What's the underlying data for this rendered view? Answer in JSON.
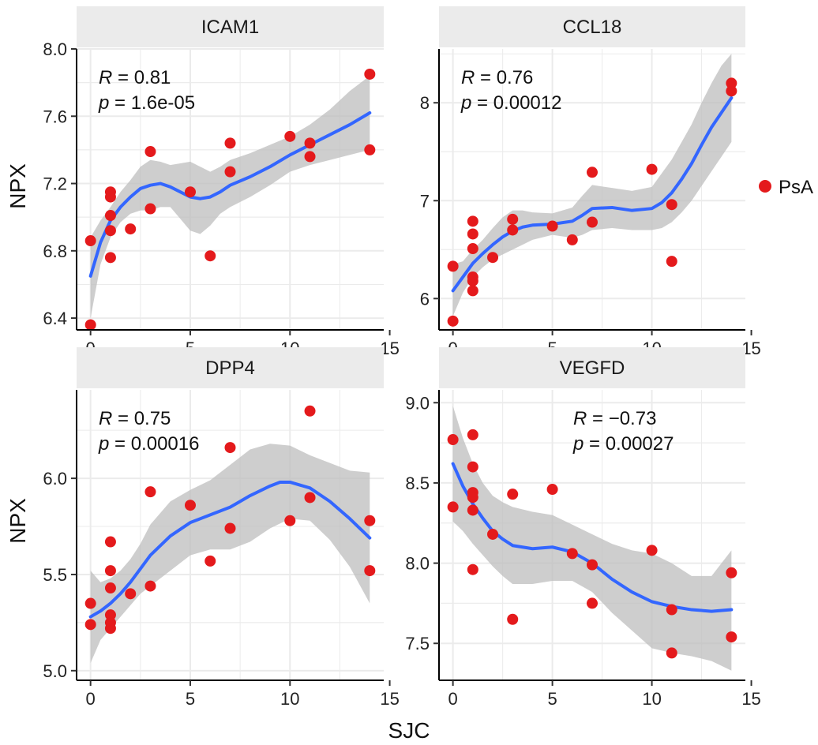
{
  "x_axis_title": "SJC",
  "y_axis_title": "NPX",
  "legend": {
    "label": "PsA",
    "color": "#e41a1c"
  },
  "colors": {
    "point": "#e41a1c",
    "smooth": "#3366ff",
    "ribbon": "#bdbdbd",
    "grid": "#ebebeb",
    "strip": "#ebebeb"
  },
  "chart_data": [
    {
      "type": "scatter",
      "title": "ICAM1",
      "xlim": [
        -0.7,
        14.7
      ],
      "ylim": [
        6.33,
        8.0
      ],
      "x_ticks": [
        0,
        5,
        10,
        15
      ],
      "y_ticks": [
        6.4,
        6.8,
        7.2,
        7.6,
        8.0
      ],
      "y_tick_labels": [
        "6.4",
        "6.8",
        "7.2",
        "7.6",
        "8.0"
      ],
      "stat": {
        "r_label": "R",
        "r_value": "0.81",
        "p_label": "p",
        "p_value": "1.6e-05",
        "corner": "top-left"
      },
      "points": [
        [
          0,
          6.86
        ],
        [
          0,
          6.36
        ],
        [
          1,
          7.15
        ],
        [
          1,
          7.12
        ],
        [
          1,
          7.01
        ],
        [
          1,
          6.92
        ],
        [
          1,
          6.76
        ],
        [
          2,
          6.93
        ],
        [
          3,
          7.39
        ],
        [
          3,
          7.05
        ],
        [
          5,
          7.15
        ],
        [
          6,
          6.77
        ],
        [
          7,
          7.44
        ],
        [
          7,
          7.27
        ],
        [
          10,
          7.48
        ],
        [
          11,
          7.44
        ],
        [
          11,
          7.36
        ],
        [
          14,
          7.85
        ],
        [
          14,
          7.4
        ]
      ],
      "smooth": [
        [
          0,
          6.65
        ],
        [
          0.5,
          6.85
        ],
        [
          1,
          6.98
        ],
        [
          1.5,
          7.06
        ],
        [
          2,
          7.12
        ],
        [
          2.5,
          7.17
        ],
        [
          3,
          7.19
        ],
        [
          3.5,
          7.2
        ],
        [
          4,
          7.18
        ],
        [
          4.5,
          7.15
        ],
        [
          5,
          7.12
        ],
        [
          5.5,
          7.11
        ],
        [
          6,
          7.12
        ],
        [
          6.5,
          7.15
        ],
        [
          7,
          7.19
        ],
        [
          8,
          7.24
        ],
        [
          9,
          7.3
        ],
        [
          10,
          7.37
        ],
        [
          11,
          7.43
        ],
        [
          12,
          7.49
        ],
        [
          13,
          7.55
        ],
        [
          14,
          7.62
        ]
      ],
      "band_upper": [
        [
          0,
          6.88
        ],
        [
          0.5,
          6.98
        ],
        [
          1,
          7.06
        ],
        [
          1.5,
          7.15
        ],
        [
          2,
          7.22
        ],
        [
          2.5,
          7.3
        ],
        [
          3,
          7.34
        ],
        [
          3.5,
          7.33
        ],
        [
          4,
          7.31
        ],
        [
          4.5,
          7.32
        ],
        [
          5,
          7.33
        ],
        [
          5.5,
          7.3
        ],
        [
          6,
          7.27
        ],
        [
          6.5,
          7.3
        ],
        [
          7,
          7.34
        ],
        [
          8,
          7.38
        ],
        [
          9,
          7.43
        ],
        [
          10,
          7.48
        ],
        [
          11,
          7.55
        ],
        [
          12,
          7.64
        ],
        [
          13,
          7.75
        ],
        [
          14,
          7.84
        ]
      ],
      "band_lower": [
        [
          0,
          6.4
        ],
        [
          0.5,
          6.72
        ],
        [
          1,
          6.88
        ],
        [
          1.5,
          6.97
        ],
        [
          2,
          7.02
        ],
        [
          2.5,
          7.04
        ],
        [
          3,
          7.04
        ],
        [
          3.5,
          7.06
        ],
        [
          4,
          7.06
        ],
        [
          4.5,
          6.99
        ],
        [
          5,
          6.92
        ],
        [
          5.5,
          6.9
        ],
        [
          6,
          6.95
        ],
        [
          6.5,
          7.02
        ],
        [
          7,
          7.06
        ],
        [
          8,
          7.12
        ],
        [
          9,
          7.19
        ],
        [
          10,
          7.27
        ],
        [
          11,
          7.31
        ],
        [
          12,
          7.34
        ],
        [
          13,
          7.37
        ],
        [
          14,
          7.4
        ]
      ]
    },
    {
      "type": "scatter",
      "title": "CCL18",
      "xlim": [
        -0.7,
        14.7
      ],
      "ylim": [
        5.68,
        8.55
      ],
      "x_ticks": [
        0,
        5,
        10,
        15
      ],
      "y_ticks": [
        6,
        7,
        8
      ],
      "y_tick_labels": [
        "6",
        "7",
        "8"
      ],
      "stat": {
        "r_label": "R",
        "r_value": "0.76",
        "p_label": "p",
        "p_value": "0.00012",
        "corner": "top-left"
      },
      "points": [
        [
          0,
          6.33
        ],
        [
          0,
          5.77
        ],
        [
          1,
          6.79
        ],
        [
          1,
          6.66
        ],
        [
          1,
          6.51
        ],
        [
          1,
          6.22
        ],
        [
          1,
          6.18
        ],
        [
          1,
          6.08
        ],
        [
          2,
          6.42
        ],
        [
          3,
          6.81
        ],
        [
          3,
          6.7
        ],
        [
          5,
          6.74
        ],
        [
          6,
          6.6
        ],
        [
          7,
          7.29
        ],
        [
          7,
          6.78
        ],
        [
          10,
          7.32
        ],
        [
          11,
          6.96
        ],
        [
          11,
          6.38
        ],
        [
          14,
          8.2
        ],
        [
          14,
          8.12
        ]
      ],
      "smooth": [
        [
          0,
          6.08
        ],
        [
          0.5,
          6.22
        ],
        [
          1,
          6.36
        ],
        [
          1.5,
          6.46
        ],
        [
          2,
          6.55
        ],
        [
          2.5,
          6.63
        ],
        [
          3,
          6.69
        ],
        [
          3.5,
          6.73
        ],
        [
          4,
          6.75
        ],
        [
          5,
          6.76
        ],
        [
          6,
          6.79
        ],
        [
          6.5,
          6.85
        ],
        [
          7,
          6.92
        ],
        [
          8,
          6.93
        ],
        [
          9,
          6.9
        ],
        [
          10,
          6.92
        ],
        [
          10.5,
          6.98
        ],
        [
          11,
          7.08
        ],
        [
          11.5,
          7.22
        ],
        [
          12,
          7.38
        ],
        [
          12.5,
          7.57
        ],
        [
          13,
          7.75
        ],
        [
          13.5,
          7.9
        ],
        [
          14,
          8.05
        ]
      ],
      "band_upper": [
        [
          0,
          6.35
        ],
        [
          0.5,
          6.38
        ],
        [
          1,
          6.5
        ],
        [
          1.5,
          6.6
        ],
        [
          2,
          6.72
        ],
        [
          2.5,
          6.83
        ],
        [
          3,
          6.9
        ],
        [
          3.5,
          6.9
        ],
        [
          4,
          6.88
        ],
        [
          5,
          6.87
        ],
        [
          6,
          6.93
        ],
        [
          6.5,
          7.05
        ],
        [
          7,
          7.16
        ],
        [
          8,
          7.13
        ],
        [
          9,
          7.1
        ],
        [
          10,
          7.14
        ],
        [
          10.5,
          7.28
        ],
        [
          11,
          7.42
        ],
        [
          11.5,
          7.6
        ],
        [
          12,
          7.78
        ],
        [
          12.5,
          8.0
        ],
        [
          13,
          8.2
        ],
        [
          13.5,
          8.38
        ],
        [
          14,
          8.5
        ]
      ],
      "band_lower": [
        [
          0,
          5.82
        ],
        [
          0.5,
          6.06
        ],
        [
          1,
          6.22
        ],
        [
          1.5,
          6.32
        ],
        [
          2,
          6.4
        ],
        [
          2.5,
          6.45
        ],
        [
          3,
          6.5
        ],
        [
          3.5,
          6.55
        ],
        [
          4,
          6.6
        ],
        [
          5,
          6.65
        ],
        [
          6,
          6.62
        ],
        [
          6.5,
          6.65
        ],
        [
          7,
          6.7
        ],
        [
          8,
          6.72
        ],
        [
          9,
          6.7
        ],
        [
          10,
          6.7
        ],
        [
          10.5,
          6.72
        ],
        [
          11,
          6.78
        ],
        [
          11.5,
          6.88
        ],
        [
          12,
          7.0
        ],
        [
          12.5,
          7.15
        ],
        [
          13,
          7.3
        ],
        [
          13.5,
          7.45
        ],
        [
          14,
          7.6
        ]
      ]
    },
    {
      "type": "scatter",
      "title": "DPP4",
      "xlim": [
        -0.7,
        14.7
      ],
      "ylim": [
        4.95,
        6.46
      ],
      "x_ticks": [
        0,
        5,
        10,
        15
      ],
      "y_ticks": [
        5.0,
        5.5,
        6.0
      ],
      "y_tick_labels": [
        "5.0",
        "5.5",
        "6.0"
      ],
      "stat": {
        "r_label": "R",
        "r_value": "0.75",
        "p_label": "p",
        "p_value": "0.00016",
        "corner": "top-left"
      },
      "points": [
        [
          0,
          5.35
        ],
        [
          0,
          5.24
        ],
        [
          1,
          5.67
        ],
        [
          1,
          5.52
        ],
        [
          1,
          5.43
        ],
        [
          1,
          5.29
        ],
        [
          1,
          5.25
        ],
        [
          1,
          5.22
        ],
        [
          2,
          5.4
        ],
        [
          3,
          5.93
        ],
        [
          3,
          5.44
        ],
        [
          5,
          5.86
        ],
        [
          6,
          5.57
        ],
        [
          7,
          6.16
        ],
        [
          7,
          5.74
        ],
        [
          10,
          5.78
        ],
        [
          11,
          6.35
        ],
        [
          11,
          5.9
        ],
        [
          14,
          5.78
        ],
        [
          14,
          5.52
        ]
      ],
      "smooth": [
        [
          0,
          5.28
        ],
        [
          0.5,
          5.31
        ],
        [
          1,
          5.35
        ],
        [
          1.5,
          5.4
        ],
        [
          2,
          5.46
        ],
        [
          2.5,
          5.53
        ],
        [
          3,
          5.6
        ],
        [
          4,
          5.7
        ],
        [
          5,
          5.77
        ],
        [
          6,
          5.81
        ],
        [
          7,
          5.85
        ],
        [
          8,
          5.91
        ],
        [
          9,
          5.96
        ],
        [
          9.5,
          5.98
        ],
        [
          10,
          5.98
        ],
        [
          11,
          5.95
        ],
        [
          12,
          5.88
        ],
        [
          13,
          5.79
        ],
        [
          14,
          5.69
        ]
      ],
      "band_upper": [
        [
          0,
          5.52
        ],
        [
          0.5,
          5.46
        ],
        [
          1,
          5.48
        ],
        [
          1.5,
          5.52
        ],
        [
          2,
          5.58
        ],
        [
          2.5,
          5.66
        ],
        [
          3,
          5.76
        ],
        [
          4,
          5.88
        ],
        [
          5,
          5.94
        ],
        [
          6,
          5.99
        ],
        [
          7,
          6.07
        ],
        [
          8,
          6.15
        ],
        [
          9,
          6.18
        ],
        [
          10,
          6.17
        ],
        [
          11,
          6.12
        ],
        [
          12,
          6.08
        ],
        [
          13,
          6.04
        ],
        [
          14,
          6.03
        ]
      ],
      "band_lower": [
        [
          0,
          5.04
        ],
        [
          0.5,
          5.16
        ],
        [
          1,
          5.22
        ],
        [
          1.5,
          5.28
        ],
        [
          2,
          5.34
        ],
        [
          2.5,
          5.4
        ],
        [
          3,
          5.44
        ],
        [
          4,
          5.52
        ],
        [
          5,
          5.6
        ],
        [
          6,
          5.63
        ],
        [
          7,
          5.63
        ],
        [
          8,
          5.67
        ],
        [
          9,
          5.74
        ],
        [
          10,
          5.79
        ],
        [
          11,
          5.78
        ],
        [
          12,
          5.68
        ],
        [
          13,
          5.54
        ],
        [
          14,
          5.35
        ]
      ]
    },
    {
      "type": "scatter",
      "title": "VEGFD",
      "xlim": [
        -0.7,
        14.7
      ],
      "ylim": [
        7.27,
        9.08
      ],
      "x_ticks": [
        0,
        5,
        10,
        15
      ],
      "y_ticks": [
        7.5,
        8.0,
        8.5,
        9.0
      ],
      "y_tick_labels": [
        "7.5",
        "8.0",
        "8.5",
        "9.0"
      ],
      "stat": {
        "r_label": "R",
        "r_value": "−0.73",
        "p_label": "p",
        "p_value": "0.00027",
        "corner": "top-right"
      },
      "points": [
        [
          0,
          8.77
        ],
        [
          0,
          8.35
        ],
        [
          1,
          8.8
        ],
        [
          1,
          8.6
        ],
        [
          1,
          8.44
        ],
        [
          1,
          8.41
        ],
        [
          1,
          8.33
        ],
        [
          1,
          7.96
        ],
        [
          2,
          8.18
        ],
        [
          3,
          8.43
        ],
        [
          3,
          7.65
        ],
        [
          5,
          8.46
        ],
        [
          6,
          8.06
        ],
        [
          7,
          7.99
        ],
        [
          7,
          7.75
        ],
        [
          10,
          8.08
        ],
        [
          11,
          7.71
        ],
        [
          11,
          7.44
        ],
        [
          14,
          7.94
        ],
        [
          14,
          7.54
        ]
      ],
      "smooth": [
        [
          0,
          8.62
        ],
        [
          0.5,
          8.48
        ],
        [
          1,
          8.37
        ],
        [
          1.5,
          8.28
        ],
        [
          2,
          8.2
        ],
        [
          2.5,
          8.15
        ],
        [
          3,
          8.11
        ],
        [
          4,
          8.09
        ],
        [
          5,
          8.1
        ],
        [
          6,
          8.07
        ],
        [
          7,
          8.0
        ],
        [
          8,
          7.9
        ],
        [
          9,
          7.82
        ],
        [
          10,
          7.76
        ],
        [
          11,
          7.73
        ],
        [
          12,
          7.71
        ],
        [
          13,
          7.7
        ],
        [
          14,
          7.71
        ]
      ],
      "band_upper": [
        [
          0,
          8.98
        ],
        [
          0.5,
          8.78
        ],
        [
          1,
          8.62
        ],
        [
          1.5,
          8.5
        ],
        [
          2,
          8.42
        ],
        [
          2.5,
          8.38
        ],
        [
          3,
          8.35
        ],
        [
          4,
          8.32
        ],
        [
          5,
          8.3
        ],
        [
          6,
          8.24
        ],
        [
          7,
          8.18
        ],
        [
          8,
          8.12
        ],
        [
          9,
          8.08
        ],
        [
          10,
          8.06
        ],
        [
          11,
          8.0
        ],
        [
          12,
          7.92
        ],
        [
          13,
          7.92
        ],
        [
          14,
          8.08
        ]
      ],
      "band_lower": [
        [
          0,
          8.26
        ],
        [
          0.5,
          8.2
        ],
        [
          1,
          8.12
        ],
        [
          1.5,
          8.05
        ],
        [
          2,
          7.98
        ],
        [
          2.5,
          7.92
        ],
        [
          3,
          7.87
        ],
        [
          4,
          7.87
        ],
        [
          5,
          7.89
        ],
        [
          6,
          7.89
        ],
        [
          7,
          7.82
        ],
        [
          8,
          7.69
        ],
        [
          9,
          7.58
        ],
        [
          10,
          7.47
        ],
        [
          11,
          7.44
        ],
        [
          12,
          7.42
        ],
        [
          13,
          7.39
        ],
        [
          14,
          7.33
        ]
      ]
    }
  ]
}
